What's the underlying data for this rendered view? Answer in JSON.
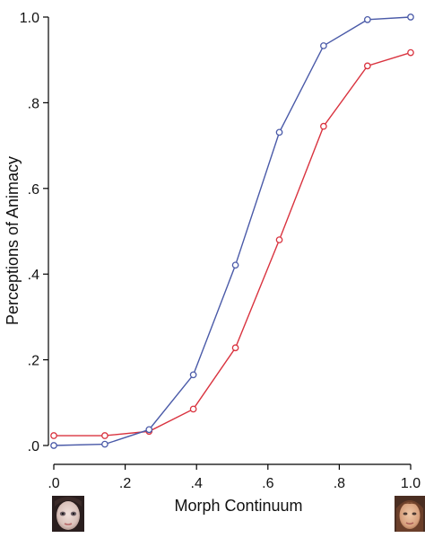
{
  "chart_data": {
    "type": "line",
    "title": "",
    "xlabel": "Morph Continuum",
    "ylabel": "Perceptions of Animacy",
    "xlim": [
      0,
      1
    ],
    "ylim": [
      0,
      1
    ],
    "x_ticks": [
      {
        "value": 0.0,
        "label": ".0"
      },
      {
        "value": 0.2,
        "label": ".2"
      },
      {
        "value": 0.4,
        "label": ".4"
      },
      {
        "value": 0.6,
        "label": ".6"
      },
      {
        "value": 0.8,
        "label": ".8"
      },
      {
        "value": 1.0,
        "label": "1.0"
      }
    ],
    "y_ticks": [
      {
        "value": 0.0,
        "label": ".0"
      },
      {
        "value": 0.2,
        "label": ".2"
      },
      {
        "value": 0.4,
        "label": ".4"
      },
      {
        "value": 0.6,
        "label": ".6"
      },
      {
        "value": 0.8,
        "label": ".8"
      },
      {
        "value": 1.0,
        "label": "1.0"
      }
    ],
    "x": [
      0.0,
      0.143,
      0.267,
      0.391,
      0.509,
      0.632,
      0.756,
      0.879,
      1.0
    ],
    "series": [
      {
        "color": "#4a5aa8",
        "values": [
          0.0,
          0.003,
          0.037,
          0.165,
          0.421,
          0.731,
          0.933,
          0.994,
          1.0
        ]
      },
      {
        "color": "#d9333f",
        "values": [
          0.023,
          0.023,
          0.033,
          0.085,
          0.228,
          0.48,
          0.745,
          0.886,
          0.917
        ]
      }
    ],
    "grid": false,
    "legend": "none",
    "endpoint_images": {
      "left": "doll-face-image",
      "right": "human-face-image"
    }
  }
}
